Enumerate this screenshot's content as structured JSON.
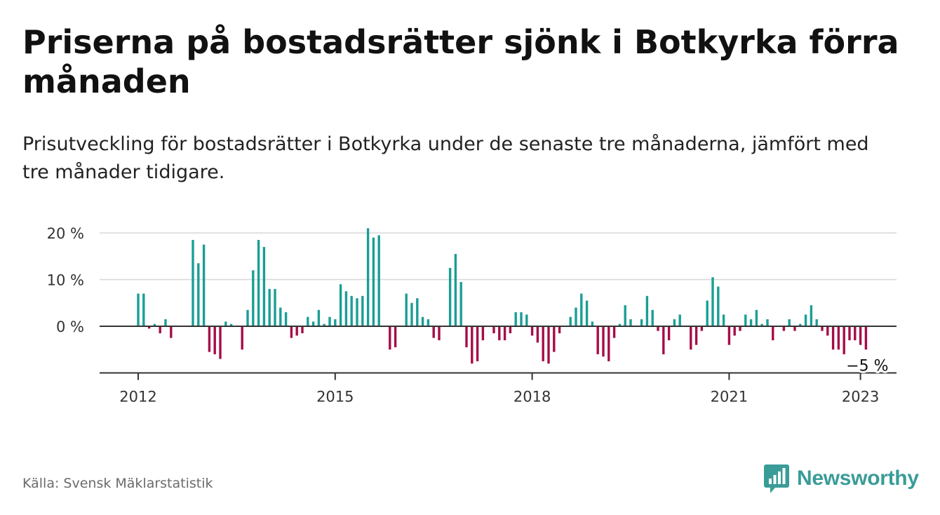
{
  "title": "Priserna på bostadsrätter sjönk i Botkyrka förra månaden",
  "subtitle": "Prisutveckling för bostadsrätter i Botkyrka under de senaste tre månaderna, jämfört med tre månader tidigare.",
  "source": "Källa: Svensk Mäklarstatistik",
  "brand": {
    "name": "Newsworthy",
    "color": "#3a9c98",
    "icon": "bar-chart-logo-icon"
  },
  "colors": {
    "positive": "#1a9e95",
    "negative": "#a50d48",
    "grid": "#d7d7d7",
    "axis": "#333333"
  },
  "chart_data": {
    "type": "bar",
    "x_start": "2012-01",
    "x_end": "2023-04",
    "frequency": "monthly",
    "ylim": [
      -10,
      20
    ],
    "yticks": [
      0,
      10,
      20
    ],
    "ytick_labels": [
      "0 %",
      "10 %",
      "20 %"
    ],
    "xticks": [
      "2012",
      "2015",
      "2018",
      "2021",
      "2023"
    ],
    "grid": true,
    "last_value_label": "−5 %",
    "values": [
      7,
      7,
      -0.5,
      0.5,
      -1.5,
      1.5,
      -2.5,
      null,
      null,
      null,
      18.5,
      13.5,
      17.5,
      -5.5,
      -6,
      -7,
      1,
      0.5,
      null,
      -5,
      3.5,
      12,
      18.5,
      17,
      8,
      8,
      4,
      3,
      -2.5,
      -2,
      -1.5,
      2,
      1,
      3.5,
      0.5,
      2,
      1.5,
      9,
      7.5,
      6.5,
      6,
      6.5,
      21,
      19,
      19.5,
      null,
      -5,
      -4.5,
      null,
      7,
      5,
      6,
      2,
      1.5,
      -2.5,
      -3,
      null,
      12.5,
      15.5,
      9.5,
      -4.5,
      -8,
      -7.5,
      -3,
      null,
      -1.5,
      -3,
      -3,
      -1.5,
      3,
      3,
      2.5,
      -2,
      -3.5,
      -7.5,
      -8,
      -5.5,
      -1.5,
      null,
      2,
      4,
      7,
      5.5,
      1,
      -6,
      -6.5,
      -7.5,
      -2.5,
      0.5,
      4.5,
      1.5,
      null,
      1.5,
      6.5,
      3.5,
      -1,
      -6,
      -3,
      1.5,
      2.5,
      null,
      -5,
      -4,
      -1,
      5.5,
      10.5,
      8.5,
      2.5,
      -4,
      -2,
      -1,
      2.5,
      1.5,
      3.5,
      0.5,
      1.5,
      -3,
      null,
      -1,
      1.5,
      -1,
      0.5,
      2.5,
      4.5,
      1.5,
      -1,
      -2,
      -5,
      -5,
      -6,
      -3,
      -3,
      -4,
      -5,
      null,
      null
    ]
  }
}
